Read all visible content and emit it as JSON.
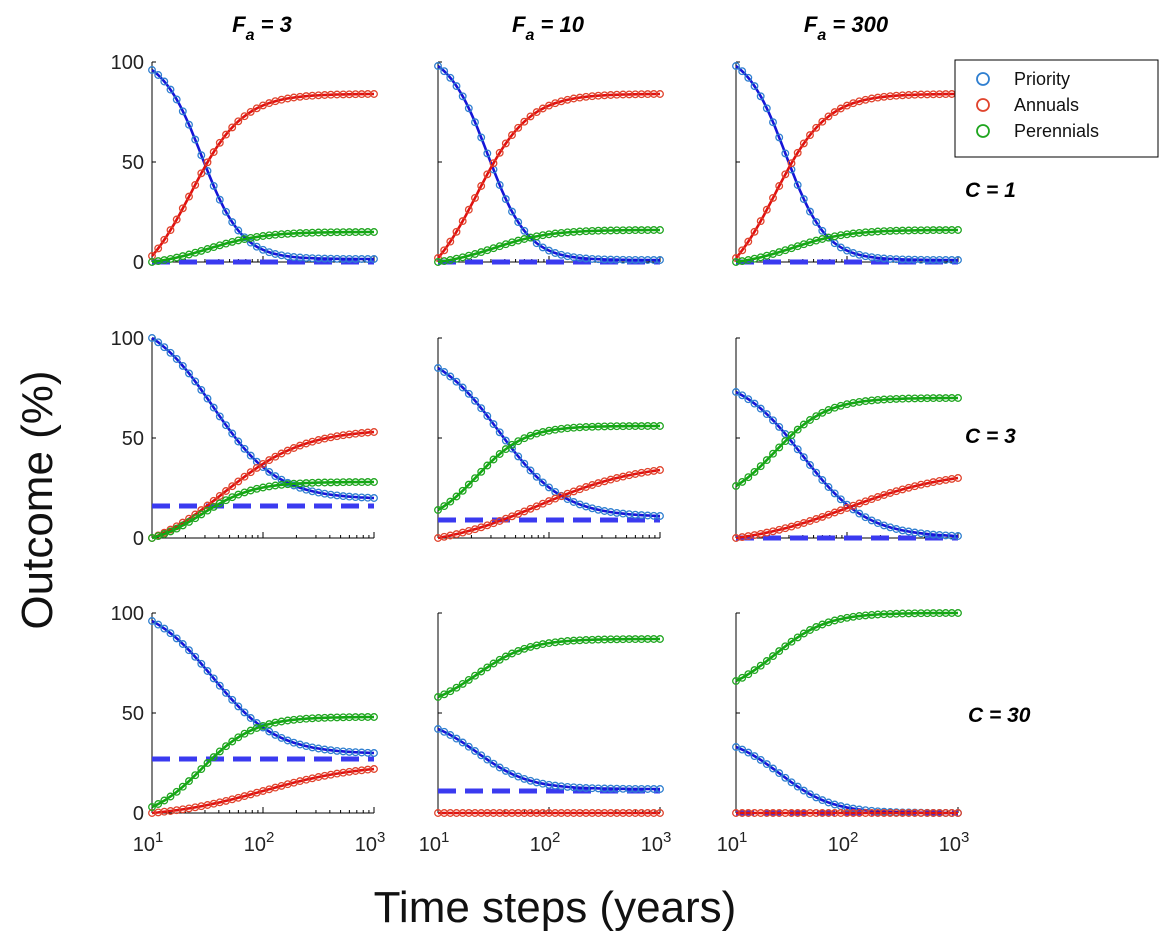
{
  "chart_data": {
    "type": "line",
    "ylabel": "Outcome (%)",
    "xlabel": "Time steps (years)",
    "xscale": "log",
    "xlim": [
      10,
      1000
    ],
    "ylim": [
      0,
      100
    ],
    "x_ticks": [
      {
        "base": "10",
        "exp": "1"
      },
      {
        "base": "10",
        "exp": "2"
      },
      {
        "base": "10",
        "exp": "3"
      }
    ],
    "y_ticks": [
      "0",
      "50",
      "100"
    ],
    "columns": [
      {
        "prefix": "F",
        "sub": "a",
        "rest": " = 3"
      },
      {
        "prefix": "F",
        "sub": "a",
        "rest": " = 10"
      },
      {
        "prefix": "F",
        "sub": "a",
        "rest": " = 300"
      }
    ],
    "rows": [
      "C = 1",
      "C = 3",
      "C = 30"
    ],
    "legend": {
      "placement": "top-right",
      "entries": [
        {
          "name": "Priority",
          "color": "#2f7fd0"
        },
        {
          "name": "Annuals",
          "color": "#e0432c"
        },
        {
          "name": "Perennials",
          "color": "#1fa51f"
        }
      ]
    },
    "colors": {
      "priority_line": "#1515d8",
      "annual_line": "#e01010",
      "perennial_line": "#12a812",
      "dashed": "#3a3af0"
    },
    "panels": [
      {
        "row": 0,
        "col": 0,
        "priority": [
          96,
          1.5,
          0.45,
          1.0
        ],
        "annuals": [
          3,
          84,
          0.35,
          1.3
        ],
        "perennials": [
          0,
          15,
          0.5,
          1.4
        ],
        "dashed": 0
      },
      {
        "row": 0,
        "col": 1,
        "priority": [
          98,
          1,
          0.45,
          1.0
        ],
        "annuals": [
          2,
          84,
          0.35,
          1.3
        ],
        "perennials": [
          0,
          16,
          0.5,
          1.4
        ],
        "dashed": 0
      },
      {
        "row": 0,
        "col": 2,
        "priority": [
          98,
          1,
          0.45,
          1.0
        ],
        "annuals": [
          2,
          84,
          0.35,
          1.3
        ],
        "perennials": [
          0,
          16,
          0.5,
          1.4
        ],
        "dashed": 0
      },
      {
        "row": 1,
        "col": 0,
        "priority": [
          100,
          20,
          0.55,
          1.6
        ],
        "annuals": [
          0,
          53,
          0.65,
          2.0
        ],
        "perennials": [
          0,
          28,
          0.45,
          1.3
        ],
        "dashed": 16
      },
      {
        "row": 1,
        "col": 1,
        "priority": [
          85,
          11,
          0.55,
          1.6
        ],
        "annuals": [
          0,
          34,
          0.9,
          2.6
        ],
        "perennials": [
          14,
          56,
          0.35,
          1.2
        ],
        "dashed": 9
      },
      {
        "row": 1,
        "col": 2,
        "priority": [
          73,
          1,
          0.6,
          1.6
        ],
        "annuals": [
          0,
          30,
          1.0,
          2.6
        ],
        "perennials": [
          26,
          70,
          0.35,
          1.3
        ],
        "dashed": 0
      },
      {
        "row": 2,
        "col": 0,
        "priority": [
          96,
          30,
          0.55,
          1.6
        ],
        "annuals": [
          0,
          22,
          1.0,
          2.4
        ],
        "perennials": [
          3,
          48,
          0.45,
          1.3
        ],
        "dashed": 27
      },
      {
        "row": 2,
        "col": 1,
        "priority": [
          42,
          12,
          0.35,
          1.3
        ],
        "annuals": [
          0,
          0,
          1.0,
          1.0
        ],
        "perennials": [
          58,
          87,
          0.35,
          1.3
        ],
        "dashed": 11
      },
      {
        "row": 2,
        "col": 2,
        "priority": [
          33,
          0,
          0.4,
          1.3
        ],
        "annuals": [
          0,
          0,
          1.0,
          1.0
        ],
        "perennials": [
          66,
          100,
          0.35,
          1.3
        ],
        "dashed": 0
      }
    ]
  }
}
